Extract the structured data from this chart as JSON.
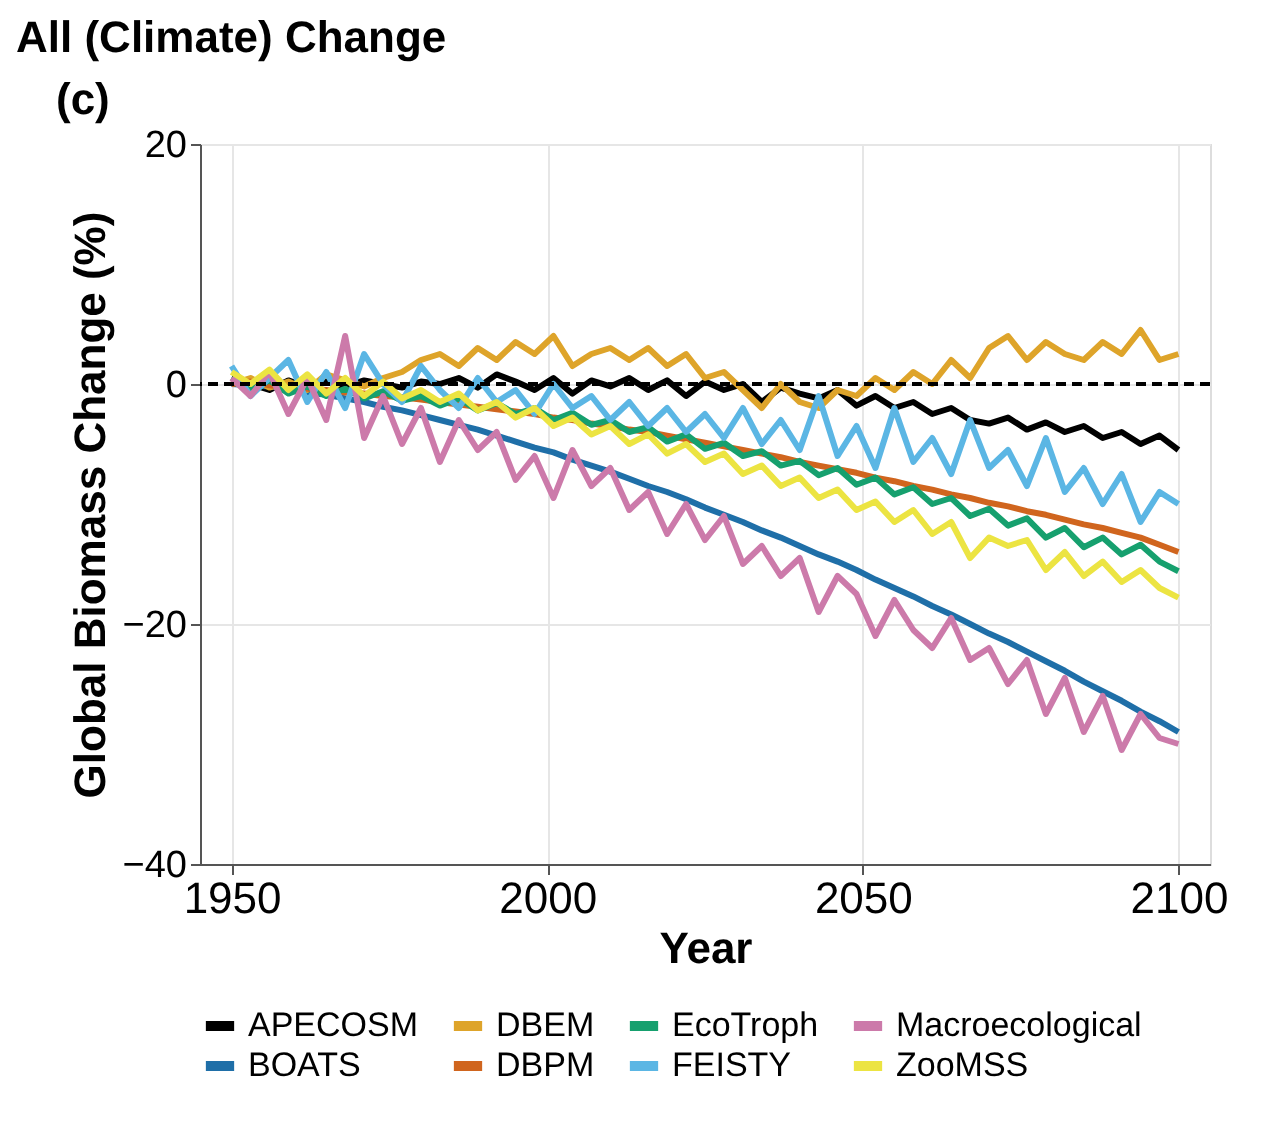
{
  "chart_data": {
    "type": "line",
    "title": "All (Climate) Change",
    "xlabel": "Year",
    "ylabel": "Global Biomass Change (%)",
    "annotations": [
      "(c)"
    ],
    "x": [
      1950,
      1953,
      1956,
      1959,
      1962,
      1965,
      1968,
      1971,
      1974,
      1977,
      1980,
      1983,
      1986,
      1989,
      1992,
      1995,
      1998,
      2001,
      2004,
      2007,
      2010,
      2013,
      2016,
      2019,
      2022,
      2025,
      2028,
      2031,
      2034,
      2037,
      2040,
      2043,
      2046,
      2049,
      2052,
      2055,
      2058,
      2061,
      2064,
      2067,
      2070,
      2073,
      2076,
      2079,
      2082,
      2085,
      2088,
      2091,
      2094,
      2097,
      2100
    ],
    "xlim": [
      1945,
      2105
    ],
    "xticks": [
      1950,
      2000,
      2050,
      2100
    ],
    "ylim": [
      -40,
      20
    ],
    "yticks": [
      -40,
      -20,
      0,
      20
    ],
    "grid": true,
    "legend": "bottom",
    "line_style": "solid",
    "ref_lines": [
      {
        "axis": "y",
        "value": 0,
        "label": null,
        "color": "#000000",
        "line_style": "dashed"
      }
    ],
    "series": [
      {
        "name": "APECOSM",
        "color": "#000000",
        "values": [
          0.5,
          0.0,
          -0.5,
          0.3,
          -0.3,
          0.2,
          -0.2,
          0.3,
          0.0,
          -0.3,
          0.2,
          0.0,
          0.5,
          -0.3,
          0.8,
          0.2,
          -0.5,
          0.5,
          -0.8,
          0.3,
          -0.2,
          0.5,
          -0.5,
          0.3,
          -1.0,
          0.2,
          -0.5,
          0.0,
          -1.5,
          -0.3,
          -0.8,
          -1.2,
          -0.5,
          -1.8,
          -1.0,
          -2.0,
          -1.5,
          -2.5,
          -2.0,
          -3.0,
          -3.3,
          -2.8,
          -3.8,
          -3.2,
          -4.0,
          -3.5,
          -4.5,
          -4.0,
          -5.0,
          -4.3,
          -5.5
        ]
      },
      {
        "name": "BOATS",
        "color": "#1f6fa8",
        "values": [
          0.0,
          -0.1,
          -0.2,
          -0.4,
          -0.7,
          -0.9,
          -1.2,
          -1.5,
          -1.9,
          -2.2,
          -2.6,
          -3.0,
          -3.4,
          -3.8,
          -4.3,
          -4.8,
          -5.3,
          -5.7,
          -6.3,
          -6.8,
          -7.3,
          -7.9,
          -8.5,
          -9.0,
          -9.6,
          -10.3,
          -10.9,
          -11.5,
          -12.2,
          -12.8,
          -13.5,
          -14.2,
          -14.8,
          -15.5,
          -16.3,
          -17.0,
          -17.7,
          -18.5,
          -19.2,
          -20.0,
          -20.8,
          -21.5,
          -22.3,
          -23.1,
          -23.9,
          -24.8,
          -25.6,
          -26.4,
          -27.3,
          -28.1,
          -29.0
        ]
      },
      {
        "name": "DBEM",
        "color": "#dea42a",
        "values": [
          0.0,
          0.5,
          -0.3,
          0.2,
          -0.5,
          0.8,
          0.3,
          -0.2,
          0.5,
          1.0,
          2.0,
          2.5,
          1.5,
          3.0,
          2.0,
          3.5,
          2.5,
          4.0,
          1.5,
          2.5,
          3.0,
          2.0,
          3.0,
          1.5,
          2.5,
          0.5,
          1.0,
          -0.5,
          -2.0,
          0.0,
          -1.5,
          -2.0,
          -0.5,
          -1.0,
          0.5,
          -0.5,
          1.0,
          0.0,
          2.0,
          0.5,
          3.0,
          4.0,
          2.0,
          3.5,
          2.5,
          2.0,
          3.5,
          2.5,
          4.5,
          2.0,
          2.5
        ]
      },
      {
        "name": "DBPM",
        "color": "#d0651e",
        "values": [
          0.0,
          0.2,
          -0.1,
          -0.3,
          -0.4,
          -0.5,
          -0.7,
          -0.8,
          -1.0,
          -1.1,
          -1.3,
          -1.5,
          -1.7,
          -1.9,
          -2.1,
          -2.3,
          -2.5,
          -2.8,
          -3.0,
          -3.3,
          -3.5,
          -3.8,
          -4.0,
          -4.3,
          -4.6,
          -4.9,
          -5.2,
          -5.5,
          -5.8,
          -6.1,
          -6.5,
          -6.8,
          -7.1,
          -7.4,
          -7.8,
          -8.1,
          -8.5,
          -8.8,
          -9.2,
          -9.5,
          -9.9,
          -10.2,
          -10.6,
          -10.9,
          -11.3,
          -11.7,
          -12.0,
          -12.4,
          -12.8,
          -13.4,
          -14.0
        ]
      },
      {
        "name": "EcoTroph",
        "color": "#16a06e",
        "values": [
          0.5,
          -0.5,
          0.3,
          -0.8,
          -0.2,
          -1.0,
          -0.4,
          -1.2,
          -0.6,
          -1.4,
          -1.0,
          -1.8,
          -1.2,
          -2.2,
          -1.6,
          -2.5,
          -2.0,
          -3.0,
          -2.4,
          -3.4,
          -3.0,
          -4.0,
          -3.6,
          -4.8,
          -4.2,
          -5.4,
          -4.9,
          -6.0,
          -5.6,
          -6.8,
          -6.4,
          -7.6,
          -7.0,
          -8.4,
          -7.8,
          -9.2,
          -8.6,
          -10.0,
          -9.5,
          -11.0,
          -10.4,
          -11.8,
          -11.2,
          -12.8,
          -12.0,
          -13.6,
          -12.8,
          -14.2,
          -13.4,
          -14.8,
          -15.6
        ]
      },
      {
        "name": "FEISTY",
        "color": "#5bb6e4",
        "values": [
          1.5,
          -1.0,
          0.5,
          2.0,
          -1.5,
          1.0,
          -2.0,
          2.5,
          0.0,
          -1.5,
          1.5,
          -0.5,
          -2.0,
          0.5,
          -1.5,
          -0.5,
          -2.5,
          0.0,
          -2.0,
          -1.0,
          -3.0,
          -1.5,
          -3.5,
          -2.0,
          -4.0,
          -2.5,
          -4.5,
          -2.0,
          -5.0,
          -3.0,
          -5.5,
          -1.0,
          -6.0,
          -3.5,
          -7.0,
          -2.0,
          -6.5,
          -4.5,
          -7.5,
          -3.0,
          -7.0,
          -5.5,
          -8.5,
          -4.5,
          -9.0,
          -7.0,
          -10.0,
          -7.5,
          -11.5,
          -9.0,
          -10.0
        ]
      },
      {
        "name": "Macroecological",
        "color": "#cc7aaa",
        "values": [
          0.5,
          -1.0,
          1.0,
          -2.5,
          0.5,
          -3.0,
          4.0,
          -4.5,
          -1.0,
          -5.0,
          -2.0,
          -6.5,
          -3.0,
          -5.5,
          -4.0,
          -8.0,
          -6.0,
          -9.5,
          -5.5,
          -8.5,
          -7.0,
          -10.5,
          -9.0,
          -12.5,
          -10.0,
          -13.0,
          -11.0,
          -15.0,
          -13.5,
          -16.0,
          -14.5,
          -19.0,
          -16.0,
          -17.5,
          -21.0,
          -18.0,
          -20.5,
          -22.0,
          -19.5,
          -23.0,
          -22.0,
          -25.0,
          -23.0,
          -27.5,
          -24.5,
          -29.0,
          -26.0,
          -30.5,
          -27.5,
          -29.5,
          -30.0
        ]
      },
      {
        "name": "ZooMSS",
        "color": "#ece442",
        "values": [
          1.0,
          0.0,
          1.2,
          -0.5,
          0.8,
          -0.8,
          0.5,
          -1.0,
          0.2,
          -1.2,
          -0.5,
          -1.5,
          -0.8,
          -2.2,
          -1.5,
          -2.8,
          -2.0,
          -3.5,
          -2.8,
          -4.2,
          -3.5,
          -5.0,
          -4.2,
          -5.8,
          -5.0,
          -6.5,
          -5.8,
          -7.5,
          -6.8,
          -8.5,
          -7.8,
          -9.5,
          -8.8,
          -10.5,
          -9.8,
          -11.5,
          -10.5,
          -12.5,
          -11.5,
          -14.5,
          -12.8,
          -13.5,
          -13.0,
          -15.5,
          -14.0,
          -16.0,
          -14.8,
          -16.5,
          -15.5,
          -17.0,
          -17.8
        ]
      }
    ]
  }
}
